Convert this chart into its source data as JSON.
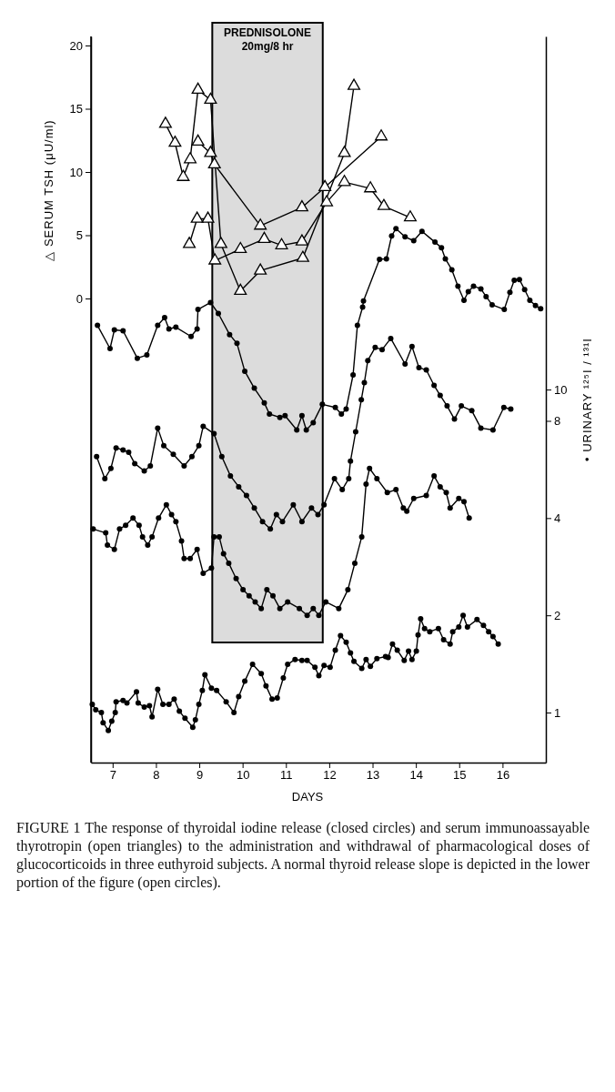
{
  "chart_data": {
    "type": "line",
    "xlabel": "DAYS",
    "ylabel": "△ SERUM TSH (μU/ml)",
    "y2label": "• URINARY ¹²⁵I / ¹³¹I",
    "xlim": [
      6.5,
      17
    ],
    "xticks": [
      7,
      8,
      9,
      10,
      11,
      12,
      13,
      14,
      15,
      16
    ],
    "ylim": [
      -36.69,
      20.72
    ],
    "yticks": [
      0,
      5,
      10,
      15,
      20
    ],
    "y2lim": [
      0.7,
      124
    ],
    "y2ticks": [
      1,
      2,
      4,
      8,
      10
    ],
    "log": "y2",
    "bands": [
      {
        "axis": "x",
        "from": 9.3,
        "to": 11.85,
        "label": "PREDNISOLONE\n20mg/8 hr",
        "color": "#dcdcdc"
      }
    ],
    "annotations": [
      "FIGURE 1  The response of thyroidal iodine release (closed circles) and serum immunoassayable thyrotropin (open triangles) to the administration and withdrawal of pharmacological doses of glucocorticoids in three euthyroid subjects. A normal thyroid release slope is depicted in the lower portion of the figure (open circles)."
    ],
    "series": [
      {
        "color": "#000000",
        "marker": "triangle",
        "axis": "y",
        "x": [
          8.22,
          8.44,
          8.63,
          8.79,
          8.97,
          9.26,
          9.5,
          9.95,
          10.41,
          11.39,
          12.35,
          12.57
        ],
        "values": [
          13.8,
          12.3,
          9.6,
          11.0,
          16.5,
          15.7,
          4.3,
          0.6,
          2.2,
          3.2,
          11.5,
          16.8
        ]
      },
      {
        "color": "#000000",
        "marker": "triangle",
        "axis": "y",
        "x": [
          8.77,
          8.95,
          9.2,
          9.36,
          9.95,
          10.5,
          10.9,
          11.37,
          11.94,
          12.35,
          12.95,
          13.26,
          13.87
        ],
        "values": [
          4.3,
          6.3,
          6.3,
          3.0,
          3.9,
          4.7,
          4.2,
          4.5,
          7.6,
          9.2,
          8.7,
          7.3,
          6.4
        ]
      },
      {
        "color": "#000000",
        "marker": "triangle",
        "axis": "y",
        "x": [
          8.97,
          9.26,
          9.35,
          10.41,
          11.37,
          11.9,
          13.2
        ],
        "values": [
          12.4,
          11.5,
          10.6,
          5.75,
          7.2,
          8.8,
          12.8
        ]
      },
      {
        "color": "#000000",
        "marker": "circle",
        "axis": "y2",
        "x": [
          6.65,
          6.94,
          7.04,
          7.24,
          7.57,
          7.79,
          8.04,
          8.2,
          8.3,
          8.46,
          8.81,
          8.95,
          8.97,
          9.26,
          9.44,
          9.7,
          9.87,
          10.05,
          10.27,
          10.5,
          10.62,
          10.86,
          10.98,
          11.25,
          11.37,
          11.47,
          11.63,
          11.84,
          12.14,
          12.28,
          12.39,
          12.55,
          12.65,
          12.77,
          12.79,
          13.16,
          13.32,
          13.44,
          13.54,
          13.75,
          13.95,
          14.14,
          14.44,
          14.59,
          14.68,
          14.83,
          14.97,
          15.11,
          15.21,
          15.33,
          15.5,
          15.62,
          15.76,
          16.04,
          16.17,
          16.27,
          16.39,
          16.51,
          16.63,
          16.76,
          16.88
        ],
        "values": [
          15.8,
          13.4,
          15.3,
          15.2,
          12.5,
          12.8,
          15.8,
          16.7,
          15.4,
          15.6,
          14.6,
          15.4,
          17.7,
          18.6,
          17.2,
          14.8,
          13.9,
          11.4,
          10.1,
          9.1,
          8.4,
          8.2,
          8.3,
          7.5,
          8.3,
          7.5,
          7.9,
          9.0,
          8.8,
          8.4,
          8.7,
          11.1,
          15.8,
          18.0,
          18.8,
          25.3,
          25.4,
          29.9,
          31.5,
          29.7,
          28.9,
          30.9,
          28.6,
          27.5,
          25.4,
          23.5,
          20.9,
          18.9,
          20.1,
          20.9,
          20.5,
          19.4,
          18.3,
          17.7,
          20.0,
          21.8,
          21.9,
          20.4,
          18.9,
          18.2,
          17.8
        ]
      },
      {
        "color": "#000000",
        "marker": "circle",
        "axis": "y2",
        "x": [
          6.63,
          6.82,
          6.96,
          7.08,
          7.24,
          7.37,
          7.51,
          7.73,
          7.87,
          8.04,
          8.18,
          8.4,
          8.65,
          8.83,
          8.99,
          9.09,
          9.34,
          9.52,
          9.72,
          9.91,
          10.09,
          10.27,
          10.46,
          10.64,
          10.78,
          10.92,
          11.17,
          11.37,
          11.59,
          11.74,
          11.88,
          12.12,
          12.3,
          12.45,
          12.49,
          12.61,
          12.74,
          12.81,
          12.89,
          13.06,
          13.22,
          13.42,
          13.75,
          13.91,
          14.07,
          14.24,
          14.42,
          14.56,
          14.72,
          14.89,
          15.05,
          15.29,
          15.5,
          15.78,
          16.03,
          16.19
        ],
        "values": [
          6.2,
          5.3,
          5.7,
          6.6,
          6.5,
          6.4,
          5.9,
          5.6,
          5.8,
          7.6,
          6.7,
          6.3,
          5.8,
          6.2,
          6.7,
          7.7,
          7.3,
          6.2,
          5.4,
          5.0,
          4.7,
          4.3,
          3.9,
          3.7,
          4.1,
          3.9,
          4.4,
          3.9,
          4.3,
          4.1,
          4.4,
          5.3,
          4.9,
          5.3,
          6.0,
          7.4,
          9.3,
          10.5,
          12.3,
          13.5,
          13.3,
          14.4,
          12.0,
          13.6,
          11.7,
          11.5,
          10.3,
          9.6,
          8.9,
          8.1,
          8.9,
          8.6,
          7.6,
          7.5,
          8.8,
          8.7
        ]
      },
      {
        "color": "#000000",
        "marker": "circle",
        "axis": "y2",
        "x": [
          6.55,
          6.84,
          6.88,
          7.04,
          7.16,
          7.3,
          7.47,
          7.61,
          7.69,
          7.81,
          7.91,
          8.06,
          8.24,
          8.36,
          8.46,
          8.59,
          8.65,
          8.79,
          8.95,
          9.09,
          9.28,
          9.34,
          9.46,
          9.56,
          9.68,
          9.85,
          10.01,
          10.15,
          10.29,
          10.43,
          10.56,
          10.7,
          10.86,
          11.04,
          11.31,
          11.49,
          11.63,
          11.76,
          11.92,
          12.22,
          12.43,
          12.59,
          12.75,
          12.85,
          12.93,
          13.1,
          13.34,
          13.54,
          13.71,
          13.79,
          13.95,
          14.24,
          14.42,
          14.56,
          14.7,
          14.79,
          14.99,
          15.11,
          15.23
        ],
        "values": [
          3.7,
          3.6,
          3.3,
          3.2,
          3.7,
          3.8,
          4.0,
          3.8,
          3.5,
          3.3,
          3.5,
          4.0,
          4.4,
          4.1,
          3.9,
          3.4,
          3.0,
          3.0,
          3.2,
          2.7,
          2.8,
          3.5,
          3.5,
          3.1,
          2.9,
          2.6,
          2.4,
          2.3,
          2.2,
          2.1,
          2.4,
          2.3,
          2.1,
          2.2,
          2.1,
          2.0,
          2.1,
          2.0,
          2.2,
          2.1,
          2.4,
          2.9,
          3.5,
          5.1,
          5.7,
          5.3,
          4.8,
          4.9,
          4.3,
          4.2,
          4.6,
          4.7,
          5.4,
          5.0,
          4.8,
          4.3,
          4.6,
          4.5,
          4.0
        ]
      },
      {
        "color": "#000000",
        "marker": "circle",
        "axis": "y2",
        "x": [
          6.53,
          6.61,
          6.74,
          6.78,
          6.9,
          6.98,
          7.06,
          7.08,
          7.24,
          7.33,
          7.55,
          7.59,
          7.73,
          7.85,
          7.91,
          8.04,
          8.16,
          8.3,
          8.42,
          8.54,
          8.67,
          8.85,
          8.91,
          8.99,
          9.07,
          9.13,
          9.28,
          9.4,
          9.62,
          9.8,
          9.91,
          10.05,
          10.23,
          10.43,
          10.54,
          10.68,
          10.8,
          10.94,
          11.04,
          11.21,
          11.37,
          11.49,
          11.67,
          11.76,
          11.88,
          12.02,
          12.14,
          12.26,
          12.39,
          12.49,
          12.57,
          12.75,
          12.85,
          12.95,
          13.1,
          13.3,
          13.36,
          13.46,
          13.57,
          13.73,
          13.83,
          13.91,
          14.01,
          14.05,
          14.11,
          14.2,
          14.32,
          14.52,
          14.64,
          14.79,
          14.85,
          14.99,
          15.09,
          15.19,
          15.41,
          15.56,
          15.68,
          15.78,
          15.9
        ],
        "values": [
          1.06,
          1.02,
          1.0,
          0.93,
          0.88,
          0.94,
          1.0,
          1.08,
          1.09,
          1.07,
          1.16,
          1.07,
          1.04,
          1.05,
          0.97,
          1.18,
          1.06,
          1.06,
          1.1,
          1.01,
          0.96,
          0.9,
          0.95,
          1.06,
          1.17,
          1.31,
          1.19,
          1.17,
          1.08,
          1.0,
          1.12,
          1.25,
          1.41,
          1.32,
          1.21,
          1.1,
          1.11,
          1.28,
          1.41,
          1.46,
          1.45,
          1.45,
          1.38,
          1.3,
          1.4,
          1.38,
          1.56,
          1.73,
          1.65,
          1.53,
          1.44,
          1.37,
          1.46,
          1.39,
          1.47,
          1.49,
          1.48,
          1.63,
          1.56,
          1.45,
          1.55,
          1.46,
          1.55,
          1.74,
          1.95,
          1.82,
          1.78,
          1.82,
          1.68,
          1.63,
          1.78,
          1.84,
          2.0,
          1.84,
          1.94,
          1.86,
          1.78,
          1.72,
          1.63
        ]
      }
    ]
  }
}
